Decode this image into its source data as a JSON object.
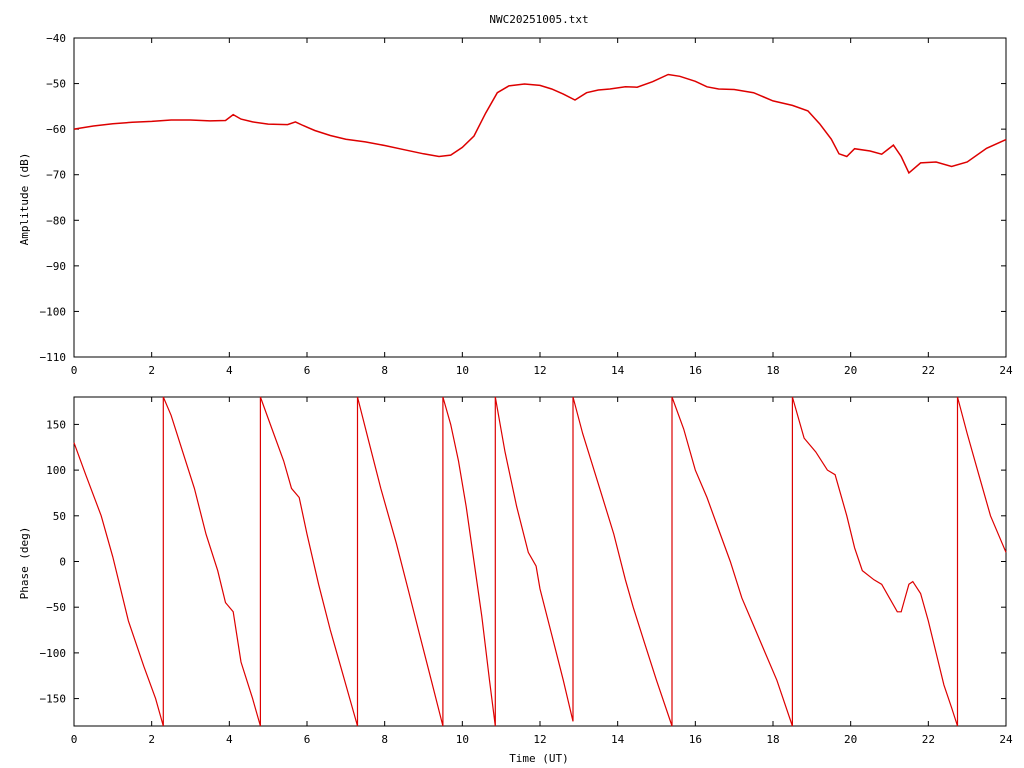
{
  "chart_data": [
    {
      "type": "line",
      "title": "NWC20251005.txt",
      "xlabel": "",
      "ylabel": "Amplitude (dB)",
      "xlim": [
        0,
        24
      ],
      "ylim": [
        -110,
        -40
      ],
      "xticks": [
        "0",
        "2",
        "4",
        "6",
        "8",
        "10",
        "12",
        "14",
        "16",
        "18",
        "20",
        "22",
        "24"
      ],
      "yticks": [
        "−110",
        "−100",
        "−90",
        "−80",
        "−70",
        "−60",
        "−50",
        "−40"
      ],
      "grid": false,
      "line_color": "#dd0000",
      "series": [
        {
          "x": [
            0,
            0.5,
            1,
            1.5,
            2,
            2.5,
            3,
            3.5,
            3.9,
            4.1,
            4.3,
            4.6,
            5,
            5.5,
            5.7,
            5.9,
            6.2,
            6.6,
            7,
            7.5,
            8,
            8.5,
            9,
            9.4,
            9.7,
            10,
            10.3,
            10.6,
            10.9,
            11.2,
            11.6,
            12,
            12.3,
            12.6,
            12.9,
            13.2,
            13.5,
            13.8,
            14.2,
            14.5,
            14.9,
            15.3,
            15.6,
            16,
            16.3,
            16.6,
            17,
            17.5,
            18,
            18.5,
            18.9,
            19.2,
            19.5,
            19.7,
            19.9,
            20.1,
            20.5,
            20.8,
            21.1,
            21.3,
            21.5,
            21.8,
            22.2,
            22.6,
            23,
            23.5,
            24
          ],
          "y": [
            -60,
            -59.3,
            -58.8,
            -58.5,
            -58.3,
            -58,
            -58,
            -58.2,
            -58.1,
            -56.8,
            -57.8,
            -58.4,
            -58.9,
            -59,
            -58.4,
            -59.2,
            -60.3,
            -61.4,
            -62.2,
            -62.8,
            -63.6,
            -64.5,
            -65.4,
            -66,
            -65.7,
            -64,
            -61.5,
            -56.5,
            -52,
            -50.5,
            -50.1,
            -50.4,
            -51.2,
            -52.3,
            -53.6,
            -52,
            -51.4,
            -51.2,
            -50.7,
            -50.8,
            -49.6,
            -48,
            -48.4,
            -49.5,
            -50.7,
            -51.2,
            -51.3,
            -52,
            -53.8,
            -54.8,
            -56,
            -58.8,
            -62.2,
            -65.4,
            -66,
            -64.3,
            -64.8,
            -65.5,
            -63.5,
            -66,
            -69.6,
            -67.4,
            -67.2,
            -68.2,
            -67.2,
            -64.2,
            -62.3
          ]
        }
      ]
    },
    {
      "type": "line",
      "title": "",
      "xlabel": "Time (UT)",
      "ylabel": "Phase (deg)",
      "xlim": [
        0,
        24
      ],
      "ylim": [
        -180,
        180
      ],
      "xticks": [
        "0",
        "2",
        "4",
        "6",
        "8",
        "10",
        "12",
        "14",
        "16",
        "18",
        "20",
        "22",
        "24"
      ],
      "yticks": [
        "−150",
        "−100",
        "−50",
        "0",
        "50",
        "100",
        "150"
      ],
      "grid": false,
      "line_color": "#dd0000",
      "series": [
        {
          "x": [
            0,
            0.3,
            0.7,
            1,
            1.4,
            1.8,
            2.1,
            2.3,
            2.3,
            2.5,
            2.8,
            3.1,
            3.4,
            3.7,
            3.9,
            4.1,
            4.3,
            4.6,
            4.8,
            4.8,
            5.1,
            5.4,
            5.6,
            5.8,
            6,
            6.3,
            6.6,
            6.9,
            7.3,
            7.3,
            7.6,
            7.9,
            8.3,
            8.6,
            8.9,
            9.2,
            9.5,
            9.5,
            9.7,
            9.9,
            10.1,
            10.3,
            10.5,
            10.7,
            10.85,
            10.85,
            11.1,
            11.4,
            11.7,
            11.9,
            12,
            12.3,
            12.6,
            12.85,
            12.85,
            13.1,
            13.5,
            13.9,
            14.2,
            14.4,
            14.7,
            15,
            15.4,
            15.4,
            15.7,
            16,
            16.3,
            16.6,
            16.9,
            17.2,
            17.5,
            17.8,
            18.1,
            18.5,
            18.5,
            18.8,
            19.1,
            19.4,
            19.6,
            19.9,
            20.1,
            20.3,
            20.6,
            20.8,
            21,
            21.2,
            21.3,
            21.4,
            21.5,
            21.6,
            21.8,
            22,
            22.2,
            22.4,
            22.6,
            22.75,
            22.75,
            23,
            23.3,
            23.6,
            23.9,
            24
          ],
          "y": [
            130,
            95,
            50,
            5,
            -65,
            -115,
            -150,
            -180,
            180,
            160,
            120,
            80,
            30,
            -10,
            -45,
            -55,
            -110,
            -150,
            -180,
            180,
            145,
            110,
            80,
            70,
            30,
            -25,
            -75,
            -120,
            -180,
            180,
            130,
            80,
            20,
            -30,
            -80,
            -130,
            -180,
            180,
            150,
            110,
            60,
            0,
            -60,
            -130,
            -180,
            180,
            120,
            60,
            10,
            -5,
            -30,
            -80,
            -130,
            -175,
            180,
            140,
            85,
            30,
            -20,
            -50,
            -90,
            -130,
            -180,
            180,
            145,
            100,
            70,
            35,
            0,
            -40,
            -70,
            -100,
            -130,
            -180,
            180,
            135,
            120,
            100,
            95,
            50,
            15,
            -10,
            -20,
            -25,
            -40,
            -55,
            -55,
            -40,
            -25,
            -22,
            -35,
            -65,
            -100,
            -135,
            -160,
            -180,
            180,
            140,
            95,
            50,
            20,
            10
          ]
        }
      ]
    }
  ]
}
